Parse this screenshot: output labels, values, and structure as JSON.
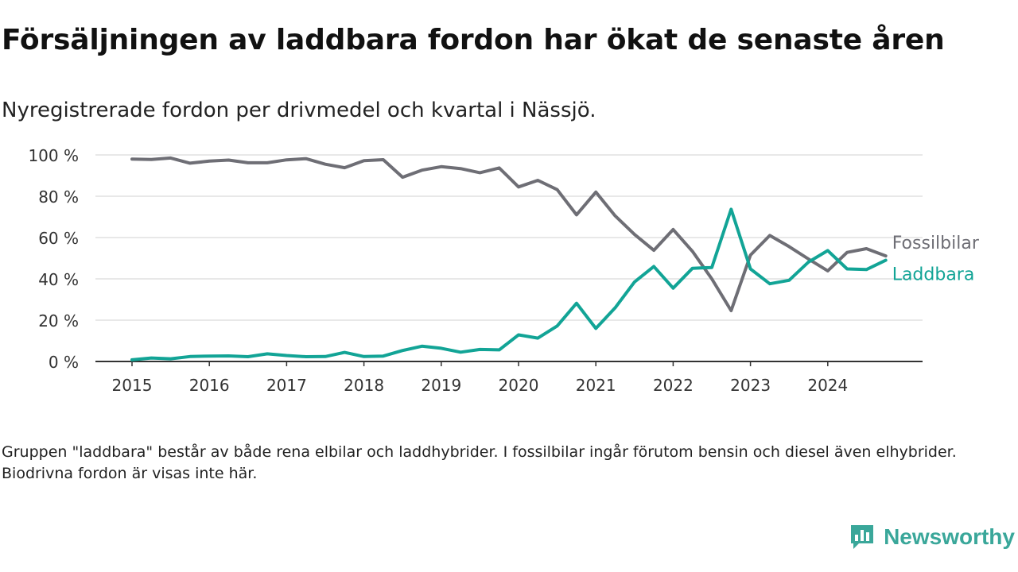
{
  "title": "Försäljningen av laddbara fordon har ökat de senaste åren",
  "subtitle": "Nyregistrerade fordon per drivmedel och kvartal i Nässjö.",
  "footnote": "Gruppen \"laddbara\" består av både rena elbilar och laddhybrider. I fossilbilar ingår förutom bensin och diesel även elhybrider. Biodrivna fordon är visas inte här.",
  "brand": {
    "name": "Newsworthy",
    "color": "#3aa79a",
    "icon": "newsworthy-logo-icon"
  },
  "chart_data": {
    "type": "line",
    "title": "Försäljningen av laddbara fordon har ökat de senaste åren",
    "xlabel": "",
    "ylabel": "",
    "x_start": 2015,
    "x_step": 0.25,
    "xlim": [
      2015,
      2025
    ],
    "ylim": [
      0,
      100
    ],
    "grid": true,
    "y_ticks": [
      0,
      20,
      40,
      60,
      80,
      100
    ],
    "y_tick_labels": [
      "0 %",
      "20 %",
      "40 %",
      "60 %",
      "80 %",
      "100 %"
    ],
    "x_ticks": [
      2015,
      2016,
      2017,
      2018,
      2019,
      2020,
      2021,
      2022,
      2023,
      2024
    ],
    "x_tick_labels": [
      "2015",
      "2016",
      "2017",
      "2018",
      "2019",
      "2020",
      "2021",
      "2022",
      "2023",
      "2024"
    ],
    "series": [
      {
        "name": "Fossilbilar",
        "color": "#6e6e75",
        "values": [
          98,
          97.8,
          98.5,
          96,
          97,
          97.5,
          96.2,
          96.2,
          97.6,
          98.2,
          95.5,
          93.8,
          97.2,
          97.7,
          89.2,
          92.6,
          94.3,
          93.4,
          91.4,
          93.7,
          84.5,
          87.7,
          83.2,
          71,
          82,
          70.5,
          61.5,
          53.8,
          63.9,
          53.3,
          40,
          24.6,
          51.5,
          61,
          55.6,
          49.6,
          43.9,
          52.8,
          54.6,
          51.1
        ]
      },
      {
        "name": "Laddbara",
        "color": "#12a496",
        "values": [
          0.8,
          1.7,
          1.3,
          2.4,
          2.6,
          2.7,
          2.3,
          3.7,
          2.9,
          2.3,
          2.4,
          4.4,
          2.4,
          2.6,
          5.3,
          7.4,
          6.4,
          4.5,
          5.8,
          5.6,
          12.9,
          11.3,
          17.2,
          28.2,
          16,
          26,
          38.5,
          46,
          35.5,
          45.1,
          45.5,
          73.7,
          44.8,
          37.6,
          39.3,
          48.1,
          53.7,
          44.8,
          44.5,
          49
        ]
      }
    ]
  }
}
